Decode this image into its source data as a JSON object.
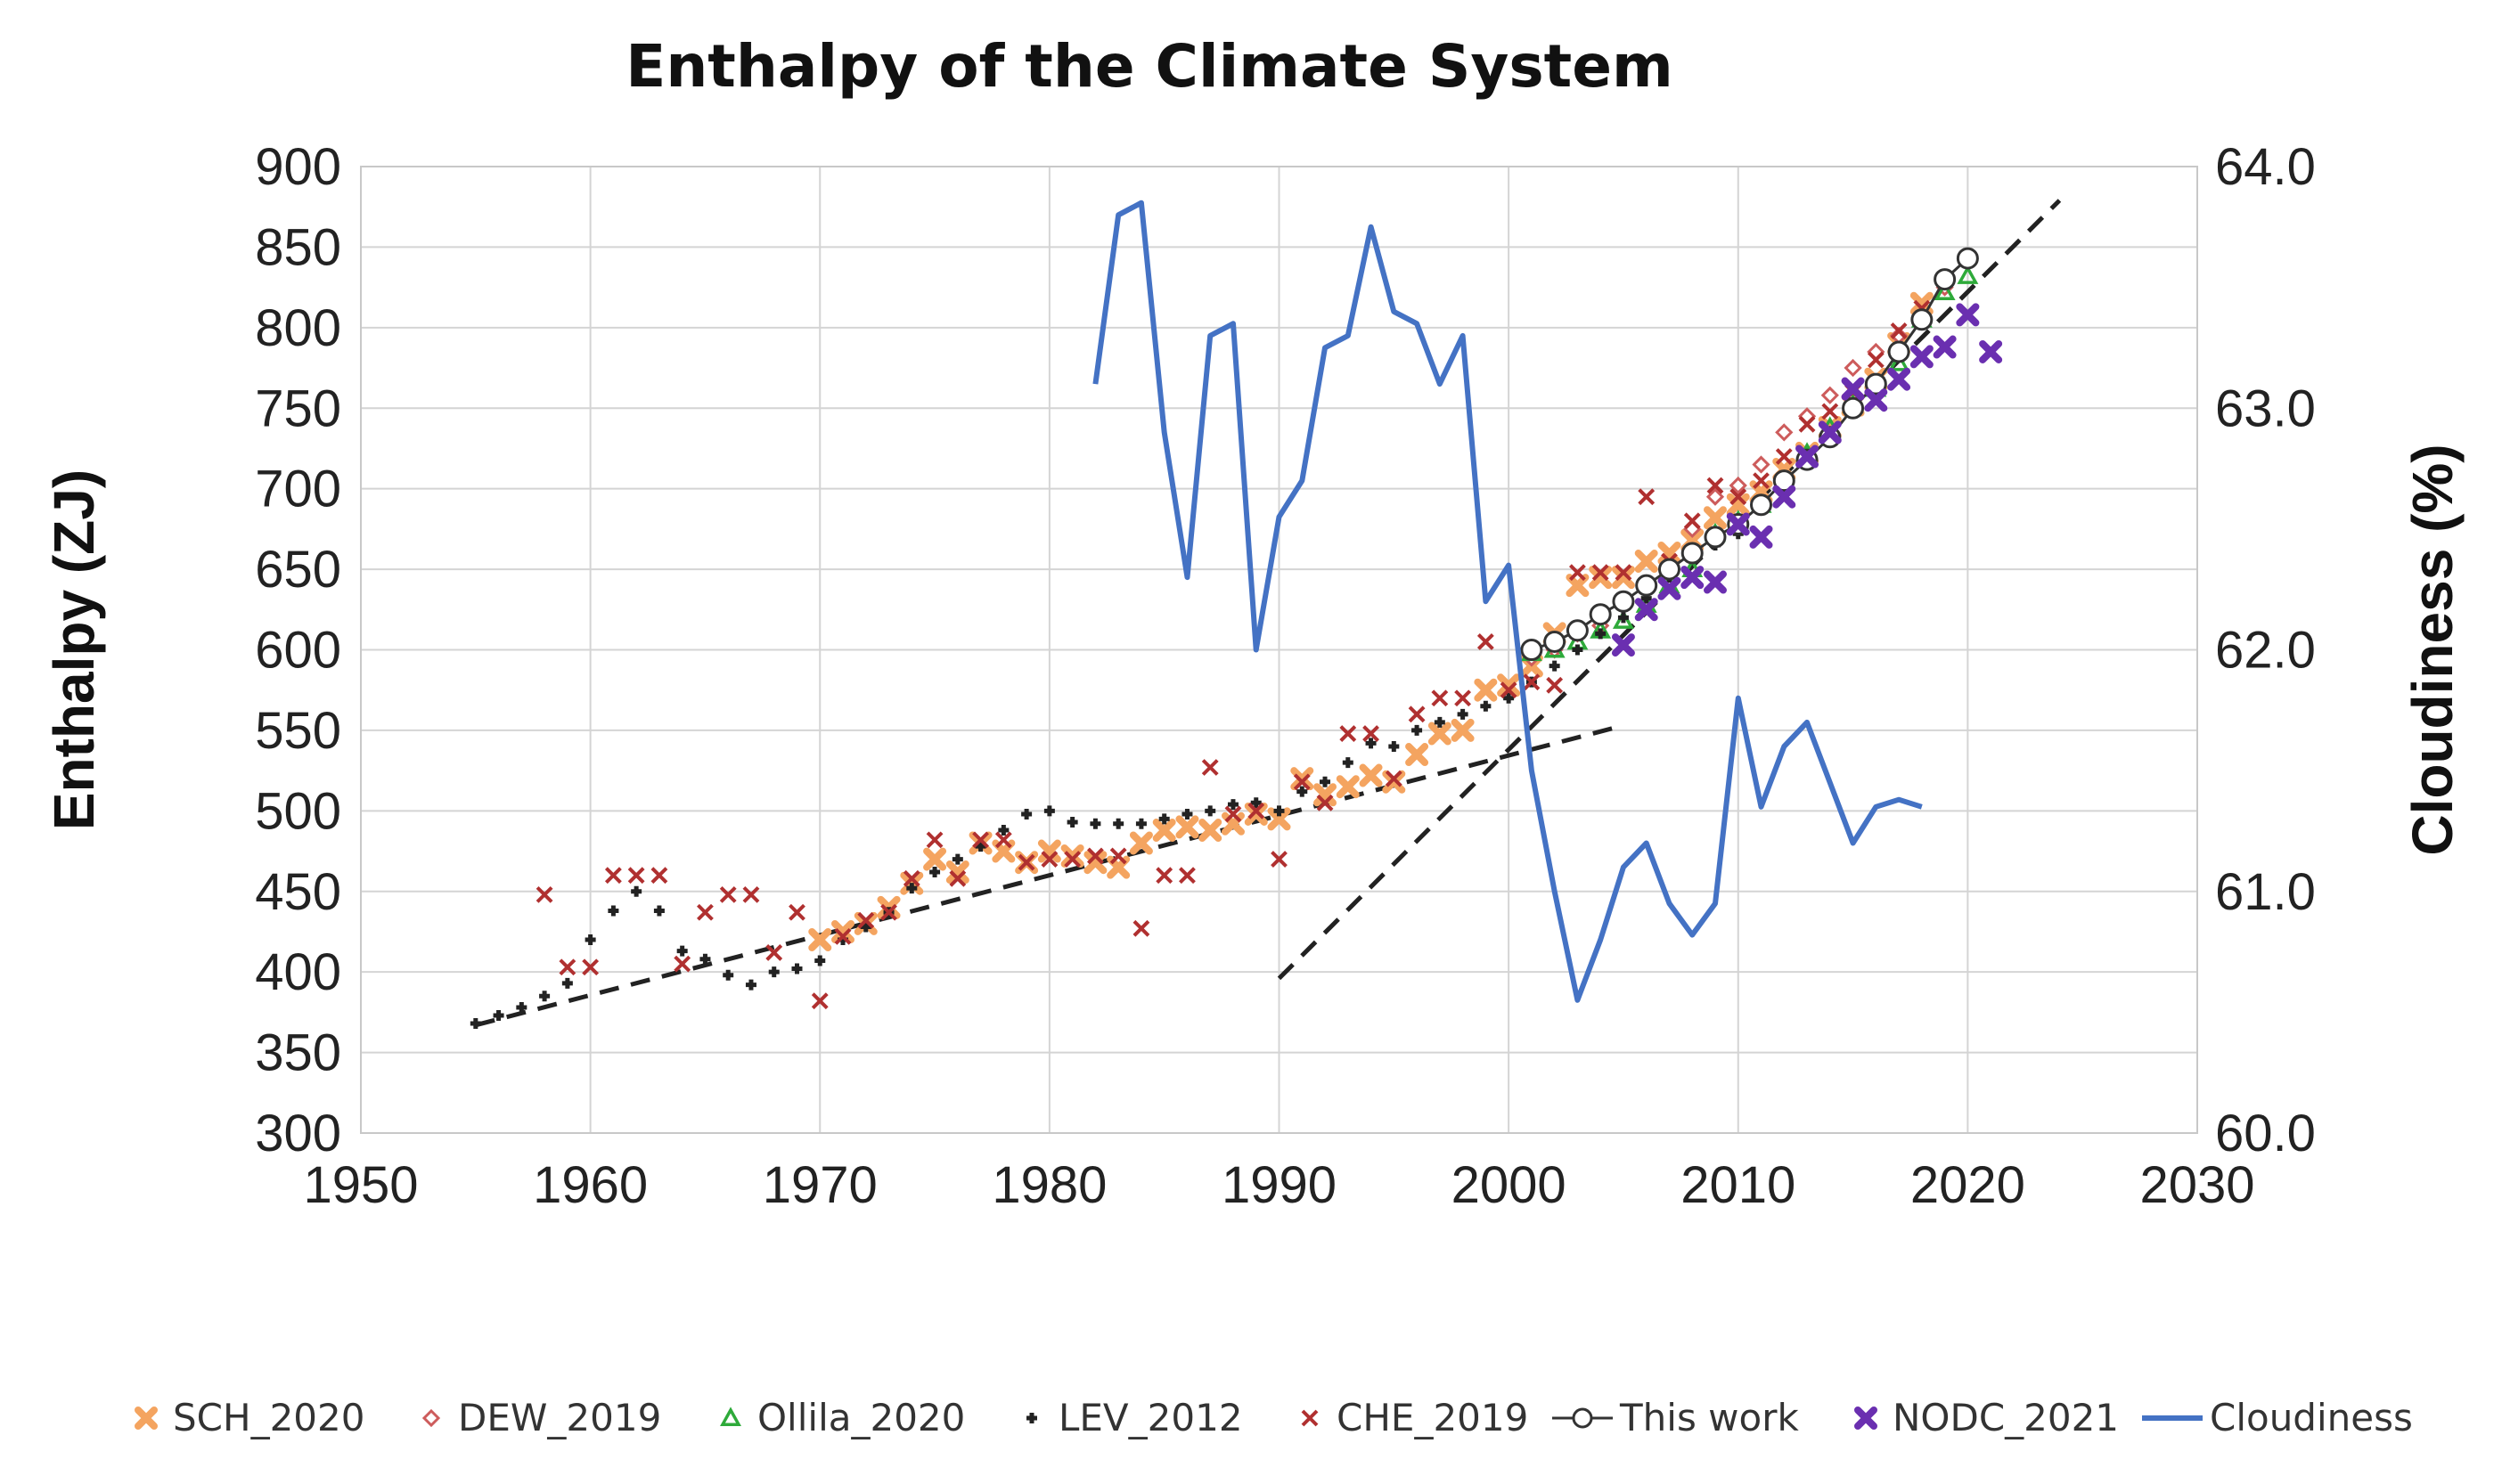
{
  "chart_data": {
    "type": "scatter",
    "title": "Enthalpy of the Climate System",
    "xlabel": "",
    "ylabel": "Enthalpy (ZJ)",
    "y2label": "Cloudiness (%)",
    "xlim": [
      1950,
      2030
    ],
    "ylim": [
      300,
      900
    ],
    "y2lim": [
      60.0,
      64.0
    ],
    "x_ticks": [
      "1950",
      "1960",
      "1970",
      "1980",
      "1990",
      "2000",
      "2010",
      "2020",
      "2030"
    ],
    "y_ticks": [
      "300",
      "350",
      "400",
      "450",
      "500",
      "550",
      "600",
      "650",
      "700",
      "750",
      "800",
      "850",
      "900"
    ],
    "y2_ticks": [
      "60.0",
      "61.0",
      "62.0",
      "63.0",
      "64.0"
    ],
    "grid": true,
    "legend_position": "bottom",
    "series": [
      {
        "name": "SCH_2020",
        "marker": "x-bold",
        "color": "#f4a460",
        "x": [
          1970,
          1971,
          1972,
          1973,
          1974,
          1975,
          1976,
          1977,
          1978,
          1979,
          1980,
          1981,
          1982,
          1983,
          1984,
          1985,
          1986,
          1987,
          1988,
          1989,
          1990,
          1991,
          1992,
          1993,
          1994,
          1995,
          1996,
          1997,
          1998,
          1999,
          2000,
          2001,
          2002,
          2003,
          2004,
          2005,
          2006,
          2007,
          2008,
          2009,
          2010,
          2011,
          2012,
          2013,
          2014,
          2015,
          2016,
          2017,
          2018
        ],
        "y": [
          420,
          425,
          430,
          440,
          455,
          470,
          462,
          480,
          475,
          468,
          475,
          472,
          468,
          465,
          480,
          488,
          490,
          488,
          492,
          498,
          495,
          520,
          510,
          515,
          522,
          518,
          535,
          548,
          550,
          575,
          578,
          590,
          610,
          640,
          645,
          645,
          655,
          660,
          668,
          682,
          690,
          698,
          712,
          722,
          738,
          752,
          768,
          790,
          815
        ]
      },
      {
        "name": "DEW_2019",
        "marker": "diamond",
        "color": "#cd5c5c",
        "x": [
          2001,
          2002,
          2003,
          2004,
          2005,
          2006,
          2007,
          2008,
          2009,
          2010,
          2011,
          2012,
          2013,
          2014,
          2015,
          2016,
          2017,
          2018,
          2019
        ],
        "y": [
          595,
          600,
          610,
          615,
          628,
          640,
          650,
          675,
          695,
          702,
          715,
          735,
          745,
          758,
          775,
          785,
          795,
          808,
          825
        ]
      },
      {
        "name": "Ollila_2020",
        "marker": "triangle",
        "color": "#2eaa3a",
        "x": [
          2001,
          2002,
          2003,
          2004,
          2005,
          2006,
          2007,
          2008,
          2009,
          2010,
          2011,
          2012,
          2013,
          2014,
          2015,
          2016,
          2017,
          2018,
          2019,
          2020
        ],
        "y": [
          598,
          600,
          605,
          612,
          618,
          628,
          640,
          650,
          672,
          680,
          690,
          705,
          722,
          738,
          752,
          762,
          778,
          805,
          822,
          832
        ]
      },
      {
        "name": "LEV_2012",
        "marker": "plus",
        "color": "#222222",
        "x": [
          1955,
          1956,
          1957,
          1958,
          1959,
          1960,
          1961,
          1962,
          1963,
          1964,
          1965,
          1966,
          1967,
          1968,
          1969,
          1970,
          1971,
          1972,
          1973,
          1974,
          1975,
          1976,
          1977,
          1978,
          1979,
          1980,
          1981,
          1982,
          1983,
          1984,
          1985,
          1986,
          1987,
          1988,
          1989,
          1990,
          1991,
          1992,
          1993,
          1994,
          1995,
          1996,
          1997,
          1998,
          1999,
          2000,
          2001,
          2002,
          2003,
          2004,
          2005,
          2006,
          2007,
          2008,
          2009,
          2010
        ],
        "y": [
          368,
          373,
          378,
          385,
          393,
          420,
          438,
          450,
          438,
          413,
          408,
          398,
          392,
          400,
          402,
          407,
          420,
          428,
          437,
          452,
          462,
          470,
          478,
          488,
          498,
          500,
          493,
          492,
          492,
          492,
          495,
          498,
          500,
          504,
          505,
          500,
          512,
          518,
          530,
          542,
          540,
          550,
          555,
          560,
          565,
          570,
          580,
          590,
          600,
          610,
          620,
          632,
          645,
          658,
          665,
          672
        ]
      },
      {
        "name": "CHE_2019",
        "marker": "x",
        "color": "#b03030",
        "x": [
          1958,
          1959,
          1960,
          1961,
          1962,
          1963,
          1964,
          1965,
          1966,
          1967,
          1968,
          1969,
          1970,
          1971,
          1972,
          1973,
          1974,
          1975,
          1976,
          1977,
          1978,
          1979,
          1980,
          1981,
          1982,
          1983,
          1984,
          1985,
          1986,
          1987,
          1988,
          1989,
          1990,
          1991,
          1992,
          1993,
          1994,
          1995,
          1996,
          1997,
          1998,
          1999,
          2000,
          2001,
          2002,
          2003,
          2004,
          2005,
          2006,
          2007,
          2008,
          2009,
          2010,
          2011,
          2012,
          2013,
          2014,
          2015,
          2016,
          2017,
          2018
        ],
        "y": [
          448,
          403,
          403,
          460,
          460,
          460,
          405,
          437,
          448,
          448,
          412,
          437,
          382,
          422,
          432,
          437,
          458,
          482,
          458,
          482,
          482,
          468,
          470,
          470,
          472,
          472,
          427,
          460,
          460,
          527,
          498,
          500,
          470,
          518,
          505,
          548,
          548,
          520,
          560,
          570,
          570,
          605,
          575,
          580,
          578,
          648,
          648,
          648,
          695,
          655,
          680,
          702,
          695,
          705,
          720,
          740,
          748,
          760,
          780,
          798,
          812
        ]
      },
      {
        "name": "This work",
        "marker": "circle-line",
        "color": "#333333",
        "x": [
          2001,
          2002,
          2003,
          2004,
          2005,
          2006,
          2007,
          2008,
          2009,
          2010,
          2011,
          2012,
          2013,
          2014,
          2015,
          2016,
          2017,
          2018,
          2019,
          2020
        ],
        "y": [
          600,
          605,
          612,
          622,
          630,
          640,
          650,
          660,
          670,
          678,
          690,
          705,
          718,
          732,
          750,
          765,
          785,
          805,
          830,
          843
        ]
      },
      {
        "name": "NODC_2021",
        "marker": "x-bold",
        "color": "#6a2fb0",
        "x": [
          2005,
          2006,
          2007,
          2008,
          2009,
          2010,
          2011,
          2012,
          2013,
          2014,
          2015,
          2016,
          2017,
          2018,
          2019,
          2020,
          2021
        ],
        "y": [
          603,
          625,
          638,
          645,
          642,
          678,
          670,
          695,
          720,
          735,
          762,
          755,
          768,
          782,
          788,
          808,
          785
        ]
      },
      {
        "name": "Cloudiness",
        "marker": "line",
        "color": "#4472c4",
        "axis": "right",
        "x": [
          1982,
          1983,
          1984,
          1985,
          1986,
          1987,
          1988,
          1989,
          1990,
          1991,
          1992,
          1993,
          1994,
          1995,
          1996,
          1997,
          1998,
          1999,
          2000,
          2001,
          2002,
          2003,
          2004,
          2005,
          2006,
          2007,
          2008,
          2009,
          2010,
          2011,
          2012,
          2013,
          2014,
          2015,
          2016,
          2017,
          2018
        ],
        "y": [
          63.1,
          63.8,
          63.85,
          62.9,
          62.3,
          63.3,
          63.35,
          62.0,
          62.55,
          62.7,
          63.25,
          63.3,
          63.75,
          63.4,
          63.35,
          63.1,
          63.3,
          62.2,
          62.35,
          61.5,
          61.0,
          60.55,
          60.8,
          61.1,
          61.2,
          60.95,
          60.82,
          60.95,
          61.8,
          61.35,
          61.6,
          61.7,
          61.45,
          61.2,
          61.35,
          61.38,
          61.35
        ]
      }
    ],
    "trend_lines": [
      {
        "name": "trend-1955-2005",
        "x": [
          1955,
          2005
        ],
        "y": [
          367,
          553
        ],
        "style": "dashed",
        "color": "#222222"
      },
      {
        "name": "trend-1990-2024",
        "x": [
          1990,
          2024
        ],
        "y": [
          396,
          879
        ],
        "style": "dashed",
        "color": "#222222"
      }
    ]
  }
}
